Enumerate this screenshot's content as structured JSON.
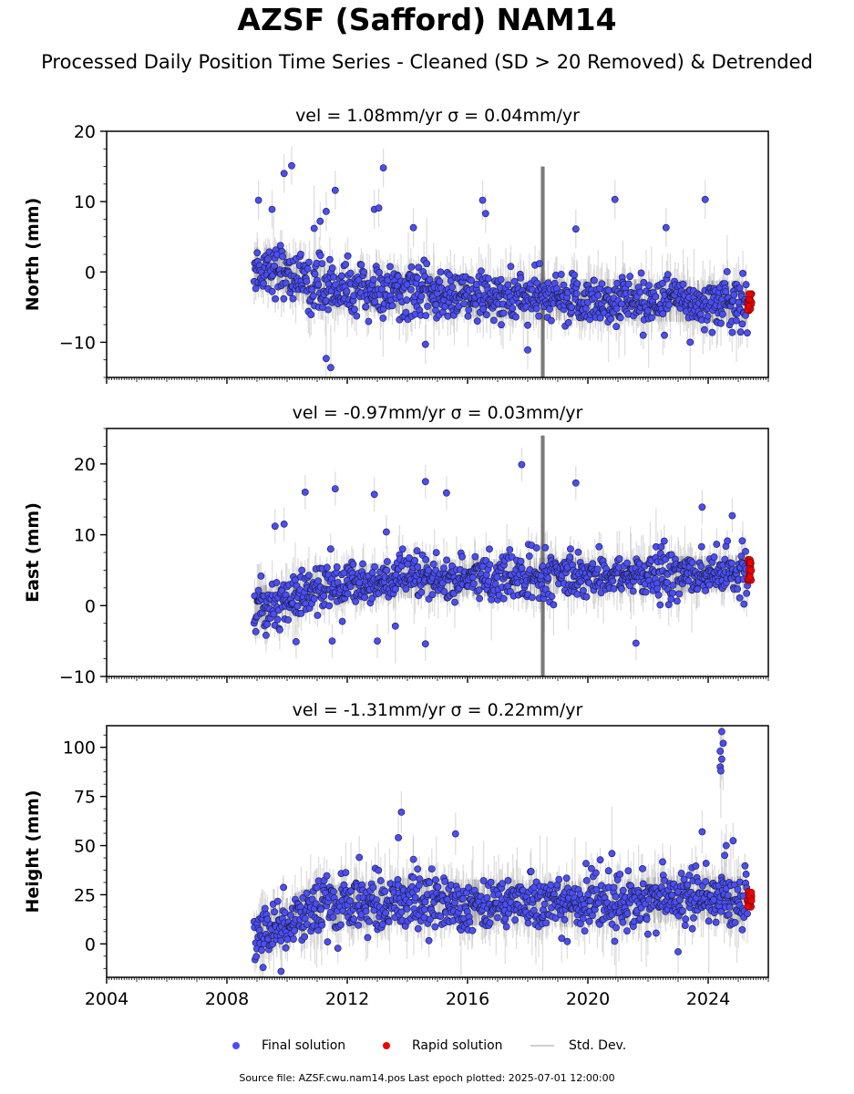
{
  "title": "AZSF (Safford) NAM14",
  "subtitle": "Processed Daily Position Time Series - Cleaned (SD > 20 Removed) & Detrended",
  "footer": "Source file: AZSF.cwu.nam14.pos  Last epoch plotted: 2025-07-01 12:00:00",
  "legend": {
    "final": "Final solution",
    "rapid": "Rapid solution",
    "std": "Std. Dev."
  },
  "colors": {
    "final": "#4a4ef5",
    "rapid": "#ee0000",
    "std": "#bdbdbd",
    "marker_edge": "#1a1a33"
  },
  "chart_data": [
    {
      "type": "scatter",
      "component": "north",
      "title": "vel = 1.08mm/yr   σ = 0.04mm/yr",
      "ylabel": "North (mm)",
      "xlim": [
        2004,
        2026
      ],
      "ylim": [
        -15,
        20
      ],
      "yticks": [
        -10,
        0,
        10,
        20
      ],
      "ytick_labels": [
        "−10",
        "0",
        "10",
        "20"
      ],
      "xtick_labels": [],
      "series": [
        {
          "kind": "final",
          "trend": [
            [
              2008.9,
              0.5
            ],
            [
              2009.8,
              0.5
            ],
            [
              2010.5,
              -1.5
            ],
            [
              2012.0,
              -2.5
            ],
            [
              2014.0,
              -3.0
            ],
            [
              2016.0,
              -3.5
            ],
            [
              2018.0,
              -3.8
            ],
            [
              2020.0,
              -4.0
            ],
            [
              2022.0,
              -4.0
            ],
            [
              2024.0,
              -4.2
            ],
            [
              2025.3,
              -4.3
            ]
          ],
          "scatter_sd": 1.8,
          "outliers": [
            [
              2009.05,
              10.2
            ],
            [
              2009.5,
              8.9
            ],
            [
              2009.9,
              14.0
            ],
            [
              2010.15,
              15.1
            ],
            [
              2010.9,
              6.2
            ],
            [
              2011.1,
              7.2
            ],
            [
              2011.3,
              8.6
            ],
            [
              2011.6,
              11.6
            ],
            [
              2012.9,
              8.9
            ],
            [
              2013.05,
              9.1
            ],
            [
              2013.2,
              14.8
            ],
            [
              2014.2,
              6.3
            ],
            [
              2016.5,
              10.2
            ],
            [
              2016.6,
              8.3
            ],
            [
              2019.6,
              6.1
            ],
            [
              2020.9,
              10.3
            ],
            [
              2022.6,
              6.3
            ],
            [
              2023.9,
              10.3
            ],
            [
              2011.3,
              -12.3
            ],
            [
              2011.45,
              -13.6
            ],
            [
              2014.6,
              -10.3
            ],
            [
              2018.0,
              -11.1
            ],
            [
              2023.4,
              -10.0
            ],
            [
              2024.8,
              -8.6
            ]
          ],
          "std_base": 2.3,
          "std_spike": [
            2018.5,
            15.0,
            -16.0
          ]
        },
        {
          "kind": "rapid",
          "x_range": [
            2025.3,
            2025.45
          ],
          "y_range": [
            -5.5,
            -3.0
          ]
        }
      ]
    },
    {
      "type": "scatter",
      "component": "east",
      "title": "vel = -0.97mm/yr   σ = 0.03mm/yr",
      "ylabel": "East (mm)",
      "xlim": [
        2004,
        2026
      ],
      "ylim": [
        -10,
        25
      ],
      "yticks": [
        -10,
        0,
        10,
        20
      ],
      "ytick_labels": [
        "−10",
        "0",
        "10",
        "20"
      ],
      "xtick_labels": [],
      "series": [
        {
          "kind": "final",
          "trend": [
            [
              2008.9,
              0.0
            ],
            [
              2009.6,
              0.5
            ],
            [
              2010.5,
              1.5
            ],
            [
              2011.5,
              2.6
            ],
            [
              2013.0,
              3.5
            ],
            [
              2015.0,
              3.8
            ],
            [
              2017.0,
              4.0
            ],
            [
              2019.0,
              4.2
            ],
            [
              2021.0,
              4.2
            ],
            [
              2023.0,
              4.4
            ],
            [
              2025.3,
              4.5
            ]
          ],
          "scatter_sd": 1.6,
          "outliers": [
            [
              2009.6,
              11.2
            ],
            [
              2009.9,
              11.5
            ],
            [
              2010.6,
              16.0
            ],
            [
              2011.6,
              16.5
            ],
            [
              2012.9,
              15.7
            ],
            [
              2013.3,
              10.4
            ],
            [
              2014.6,
              17.5
            ],
            [
              2015.3,
              15.9
            ],
            [
              2017.8,
              19.9
            ],
            [
              2019.6,
              17.3
            ],
            [
              2023.8,
              13.9
            ],
            [
              2024.8,
              12.7
            ],
            [
              2010.3,
              -5.1
            ],
            [
              2011.5,
              -5.0
            ],
            [
              2013.0,
              -5.0
            ],
            [
              2014.6,
              -5.4
            ],
            [
              2021.6,
              -5.3
            ],
            [
              2013.6,
              -2.9
            ],
            [
              2009.3,
              -4.2
            ]
          ],
          "std_base": 2.0,
          "std_spike": [
            2018.5,
            24.0,
            -11.0
          ]
        },
        {
          "kind": "rapid",
          "x_range": [
            2025.3,
            2025.45
          ],
          "y_range": [
            3.5,
            6.7
          ]
        }
      ]
    },
    {
      "type": "scatter",
      "component": "height",
      "title": "vel = -1.31mm/yr   σ = 0.22mm/yr",
      "ylabel": "Height (mm)",
      "xlim": [
        2004,
        2026
      ],
      "ylim": [
        -17,
        111
      ],
      "yticks": [
        0,
        25,
        50,
        75,
        100
      ],
      "ytick_labels": [
        "0",
        "25",
        "50",
        "75",
        "100"
      ],
      "xtick_labels": [
        "2004",
        "2008",
        "2012",
        "2016",
        "2020",
        "2024"
      ],
      "xtick_values": [
        2004,
        2008,
        2012,
        2016,
        2020,
        2024
      ],
      "series": [
        {
          "kind": "final",
          "trend": [
            [
              2008.9,
              5
            ],
            [
              2009.8,
              10
            ],
            [
              2010.5,
              16
            ],
            [
              2012.0,
              19
            ],
            [
              2014.0,
              22
            ],
            [
              2016.0,
              21
            ],
            [
              2018.0,
              21
            ],
            [
              2020.0,
              20
            ],
            [
              2022.0,
              22
            ],
            [
              2023.5,
              24
            ],
            [
              2024.4,
              22
            ],
            [
              2025.3,
              23
            ]
          ],
          "scatter_sd": 7.0,
          "outliers": [
            [
              2024.45,
              108
            ],
            [
              2024.5,
              102
            ],
            [
              2024.4,
              98
            ],
            [
              2024.45,
              94
            ],
            [
              2024.4,
              90
            ],
            [
              2024.42,
              88
            ],
            [
              2013.8,
              67
            ],
            [
              2013.7,
              54
            ],
            [
              2015.6,
              56
            ],
            [
              2023.8,
              57
            ],
            [
              2009.2,
              -12
            ],
            [
              2009.8,
              -14
            ],
            [
              2023.0,
              -4
            ],
            [
              2012.4,
              44
            ],
            [
              2014.2,
              43
            ],
            [
              2020.8,
              46
            ],
            [
              2024.6,
              50
            ],
            [
              2024.55,
              45
            ]
          ],
          "std_base": 9.0,
          "std_spike": null
        },
        {
          "kind": "rapid",
          "x_range": [
            2025.3,
            2025.45
          ],
          "y_range": [
            18,
            27
          ]
        }
      ]
    }
  ]
}
